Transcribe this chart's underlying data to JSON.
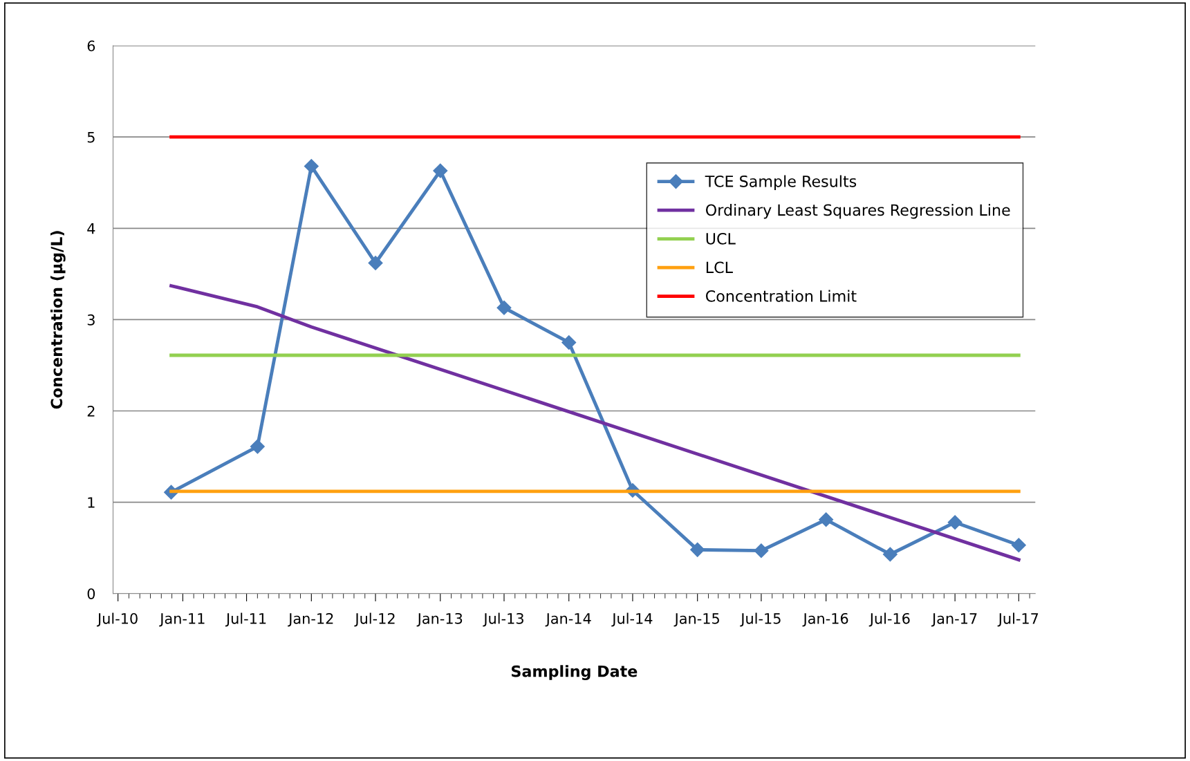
{
  "chart_data": {
    "type": "line",
    "xlabel": "Sampling Date",
    "ylabel": "Concentration (µg/L)",
    "xlim": [
      "2010-06-17",
      "2017-08-17"
    ],
    "xticks": [
      {
        "value": "2010-07-01",
        "label": "Jul-10"
      },
      {
        "value": "2011-01-01",
        "label": "Jan-11"
      },
      {
        "value": "2011-07-01",
        "label": "Jul-11"
      },
      {
        "value": "2012-01-01",
        "label": "Jan-12"
      },
      {
        "value": "2012-07-01",
        "label": "Jul-12"
      },
      {
        "value": "2013-01-01",
        "label": "Jan-13"
      },
      {
        "value": "2013-07-01",
        "label": "Jul-13"
      },
      {
        "value": "2014-01-01",
        "label": "Jan-14"
      },
      {
        "value": "2014-07-01",
        "label": "Jul-14"
      },
      {
        "value": "2015-01-01",
        "label": "Jan-15"
      },
      {
        "value": "2015-07-01",
        "label": "Jul-15"
      },
      {
        "value": "2016-01-01",
        "label": "Jan-16"
      },
      {
        "value": "2016-07-01",
        "label": "Jul-16"
      },
      {
        "value": "2017-01-01",
        "label": "Jan-17"
      },
      {
        "value": "2017-07-01",
        "label": "Jul-17"
      }
    ],
    "ylim": [
      0,
      6
    ],
    "yticks": [
      0,
      1,
      2,
      3,
      4,
      5,
      6
    ],
    "grid": "y",
    "legend": "top right",
    "series": [
      {
        "name": "TCE Sample Results",
        "color": "#4a7ebb",
        "marker": "diamond",
        "x": [
          "2010-11-29",
          "2011-08-01",
          "2012-01-01",
          "2012-07-01",
          "2013-01-01",
          "2013-07-01",
          "2014-01-01",
          "2014-07-01",
          "2015-01-01",
          "2015-07-01",
          "2016-01-01",
          "2016-07-01",
          "2017-01-01",
          "2017-07-01"
        ],
        "values": [
          1.11,
          1.61,
          4.68,
          3.62,
          4.63,
          3.13,
          2.75,
          1.13,
          0.48,
          0.47,
          0.81,
          0.43,
          0.78,
          0.53
        ]
      },
      {
        "name": "Ordinary Least Squares Regression Line",
        "color": "#7030a0",
        "marker": "none",
        "x": [
          "2010-11-29",
          "2011-08-01",
          "2012-01-01",
          "2017-07-01"
        ],
        "values": [
          3.37,
          3.14,
          2.92,
          0.37
        ]
      },
      {
        "name": "UCL",
        "color": "#92d050",
        "marker": "none",
        "x": [
          "2010-11-29",
          "2017-07-01"
        ],
        "values": [
          2.61,
          2.61
        ]
      },
      {
        "name": "LCL",
        "color": "#ffa010",
        "marker": "none",
        "x": [
          "2010-11-29",
          "2017-07-01"
        ],
        "values": [
          1.12,
          1.12
        ]
      },
      {
        "name": "Concentration Limit",
        "color": "#ff0000",
        "marker": "none",
        "x": [
          "2010-11-29",
          "2017-07-01"
        ],
        "values": [
          5,
          5
        ]
      }
    ]
  }
}
